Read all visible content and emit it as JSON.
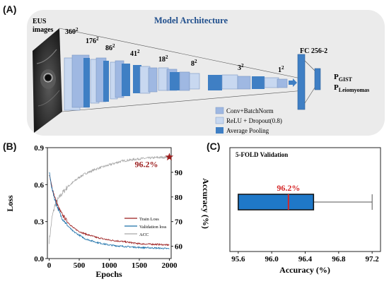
{
  "panels": {
    "a": "(A)",
    "b": "(B)",
    "c": "(C)"
  },
  "architecture": {
    "title": "Model Architecture",
    "input_label_line1": "EUS",
    "input_label_line2": "images",
    "layer_sizes": [
      {
        "base": "360",
        "exp": "2"
      },
      {
        "base": "176",
        "exp": "2"
      },
      {
        "base": "86",
        "exp": "2"
      },
      {
        "base": "41",
        "exp": "2"
      },
      {
        "base": "18",
        "exp": "2"
      },
      {
        "base": "8",
        "exp": "2"
      },
      {
        "base": "3",
        "exp": "2"
      },
      {
        "base": "1",
        "exp": "2"
      }
    ],
    "fc_label": "FC  256-2",
    "outputs": [
      {
        "main": "P",
        "sub": "GIST"
      },
      {
        "main": "P",
        "sub": "Leiomyomas"
      }
    ],
    "legend": [
      {
        "label": "Conv+BatchNorm",
        "color": "#9fb8e2"
      },
      {
        "label": "ReLU + Dropout(0.8)",
        "color": "#c8d8f0"
      },
      {
        "label": "Average Pooling",
        "color": "#3f7fc4"
      }
    ],
    "colors": {
      "panel_bg": "#ebebeb",
      "title": "#1f4e8c",
      "block_dark": "#3f7fc4",
      "block_mid": "#9fb8e2",
      "block_light": "#c8d8f0"
    }
  },
  "chart_data": [
    {
      "type": "line",
      "title": "",
      "xlabel": "Epochs",
      "ylabel": "Loss",
      "ylabel_right": "Accuracy (%)",
      "xlim": [
        -30,
        2030
      ],
      "ylim": [
        0,
        0.9
      ],
      "ylim_right": [
        55,
        100
      ],
      "x_ticks": [
        0,
        500,
        1000,
        1500,
        2000
      ],
      "y_ticks": [
        "0.0",
        "0.3",
        "0.6",
        "0.9"
      ],
      "y_ticks_right": [
        "60",
        "70",
        "80",
        "90"
      ],
      "legend_position": "bottom-right",
      "series": [
        {
          "name": "Train Loss",
          "axis": "left",
          "color": "#9b1c1c",
          "x": [
            0,
            50,
            100,
            150,
            200,
            300,
            400,
            500,
            600,
            800,
            1000,
            1200,
            1500,
            1800,
            2000
          ],
          "y": [
            0.68,
            0.57,
            0.49,
            0.42,
            0.37,
            0.3,
            0.25,
            0.22,
            0.2,
            0.17,
            0.15,
            0.14,
            0.12,
            0.115,
            0.11
          ]
        },
        {
          "name": "Validation loss",
          "axis": "left",
          "color": "#1a6fa8",
          "x": [
            0,
            50,
            100,
            150,
            200,
            300,
            400,
            500,
            600,
            800,
            1000,
            1200,
            1500,
            1800,
            2000
          ],
          "y": [
            0.7,
            0.56,
            0.47,
            0.4,
            0.34,
            0.27,
            0.22,
            0.19,
            0.16,
            0.13,
            0.11,
            0.1,
            0.09,
            0.085,
            0.08
          ]
        },
        {
          "name": "ACC",
          "axis": "right",
          "color": "#a8a8a8",
          "x": [
            0,
            50,
            100,
            200,
            300,
            400,
            500,
            600,
            800,
            1000,
            1200,
            1500,
            1800,
            2000
          ],
          "y": [
            62,
            72,
            77,
            81,
            84,
            86,
            88,
            89.5,
            91.5,
            93,
            94.5,
            95.5,
            96,
            96.2
          ]
        }
      ],
      "annotations": [
        {
          "text": "96.2%",
          "x": 2000,
          "y": 96.2,
          "axis": "right",
          "marker": "star",
          "color": "#9b1c1c"
        }
      ]
    },
    {
      "type": "box",
      "title": "5-FOLD Validation",
      "xlabel": "Accuracy (%)",
      "xlim": [
        95.5,
        97.3
      ],
      "x_ticks": [
        "95.6",
        "96.0",
        "96.4",
        "96.8",
        "97.2"
      ],
      "box": {
        "whisker_low": 95.6,
        "q1": 95.6,
        "median": 96.2,
        "q3": 96.5,
        "whisker_high": 97.2
      },
      "median_label": "96.2%",
      "box_color": "#1f78c8",
      "median_color": "#d62728"
    }
  ]
}
